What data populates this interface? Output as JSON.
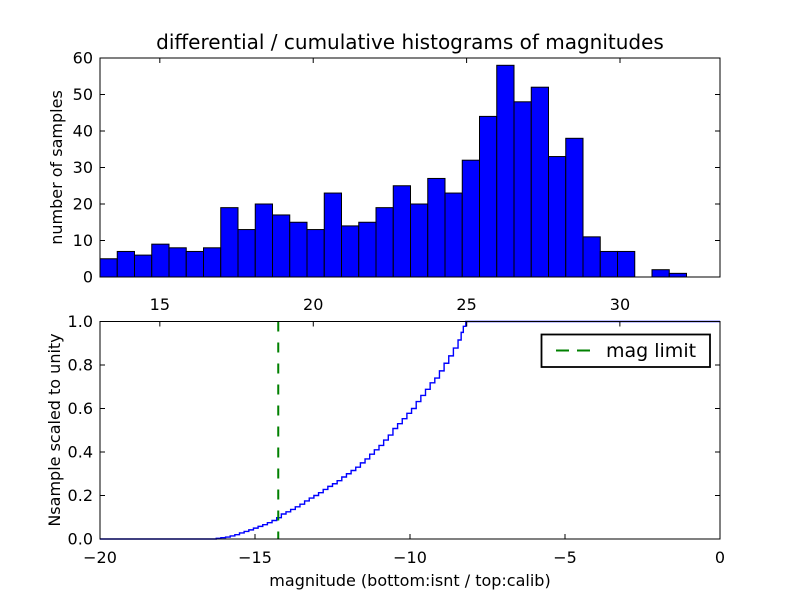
{
  "figure": {
    "background": "#ffffff"
  },
  "chart_data": [
    {
      "type": "bar",
      "name": "differential-histogram",
      "title": "differential / cumulative histograms of magnitudes",
      "ylabel": "number of samples",
      "xlabel": "",
      "bar_color": "#0000ff",
      "bar_edge_color": "#000000",
      "bin_start": 13.05,
      "bin_width": 0.5623,
      "counts": [
        5,
        7,
        6,
        9,
        8,
        7,
        8,
        19,
        13,
        20,
        17,
        15,
        13,
        23,
        14,
        15,
        19,
        25,
        20,
        27,
        23,
        32,
        44,
        58,
        48,
        52,
        33,
        38,
        11,
        7,
        7,
        0,
        2,
        1
      ],
      "xlim": [
        13.05,
        33.26
      ],
      "ylim": [
        0,
        60
      ],
      "xticks": [
        15,
        20,
        25,
        30
      ],
      "yticks": [
        0,
        10,
        20,
        30,
        40,
        50,
        60
      ],
      "grid": false
    },
    {
      "type": "line",
      "name": "cumulative-histogram",
      "step": true,
      "line_color": "#0000ff",
      "ylabel": "Nsample scaled to unity",
      "xlabel": "magnitude (bottom:isnt / top:calib)",
      "xlim": [
        -20,
        0
      ],
      "ylim": [
        0.0,
        1.0
      ],
      "xticks": [
        -20,
        -15,
        -10,
        -5,
        0
      ],
      "yticks": [
        0.0,
        0.2,
        0.4,
        0.6,
        0.8,
        1.0
      ],
      "top_edge_ticks_isnt_units": [
        -18.07,
        -13.12,
        -8.17,
        -3.23
      ],
      "grid": false,
      "legend": {
        "position": "upper right",
        "entries": [
          {
            "label": "mag limit",
            "style": "dashed",
            "color": "#008000"
          }
        ]
      },
      "mag_limit": {
        "x": -14.25,
        "color": "#008000",
        "label": "mag limit"
      },
      "points": [
        [
          -20.0,
          0.0
        ],
        [
          -16.4,
          0.0
        ],
        [
          -16.25,
          0.003
        ],
        [
          -16.1,
          0.006
        ],
        [
          -15.95,
          0.009
        ],
        [
          -15.8,
          0.014
        ],
        [
          -15.65,
          0.02
        ],
        [
          -15.5,
          0.028
        ],
        [
          -15.35,
          0.035
        ],
        [
          -15.2,
          0.042
        ],
        [
          -15.05,
          0.05
        ],
        [
          -14.9,
          0.058
        ],
        [
          -14.75,
          0.066
        ],
        [
          -14.6,
          0.075
        ],
        [
          -14.45,
          0.085
        ],
        [
          -14.3,
          0.098
        ],
        [
          -14.15,
          0.115
        ],
        [
          -14.0,
          0.125
        ],
        [
          -13.85,
          0.136
        ],
        [
          -13.7,
          0.148
        ],
        [
          -13.55,
          0.16
        ],
        [
          -13.4,
          0.175
        ],
        [
          -13.25,
          0.188
        ],
        [
          -13.1,
          0.2
        ],
        [
          -12.95,
          0.213
        ],
        [
          -12.8,
          0.228
        ],
        [
          -12.65,
          0.242
        ],
        [
          -12.5,
          0.254
        ],
        [
          -12.35,
          0.268
        ],
        [
          -12.2,
          0.285
        ],
        [
          -12.05,
          0.3
        ],
        [
          -11.9,
          0.315
        ],
        [
          -11.75,
          0.33
        ],
        [
          -11.6,
          0.35
        ],
        [
          -11.45,
          0.368
        ],
        [
          -11.3,
          0.39
        ],
        [
          -11.15,
          0.41
        ],
        [
          -11.0,
          0.43
        ],
        [
          -10.85,
          0.455
        ],
        [
          -10.7,
          0.478
        ],
        [
          -10.55,
          0.508
        ],
        [
          -10.4,
          0.53
        ],
        [
          -10.25,
          0.553
        ],
        [
          -10.1,
          0.578
        ],
        [
          -9.95,
          0.6
        ],
        [
          -9.8,
          0.632
        ],
        [
          -9.65,
          0.66
        ],
        [
          -9.5,
          0.688
        ],
        [
          -9.35,
          0.718
        ],
        [
          -9.2,
          0.74
        ],
        [
          -9.05,
          0.773
        ],
        [
          -8.9,
          0.808
        ],
        [
          -8.75,
          0.842
        ],
        [
          -8.6,
          0.878
        ],
        [
          -8.45,
          0.915
        ],
        [
          -8.35,
          0.95
        ],
        [
          -8.28,
          0.978
        ],
        [
          -8.2,
          1.0
        ],
        [
          0.0,
          1.0
        ]
      ]
    }
  ]
}
